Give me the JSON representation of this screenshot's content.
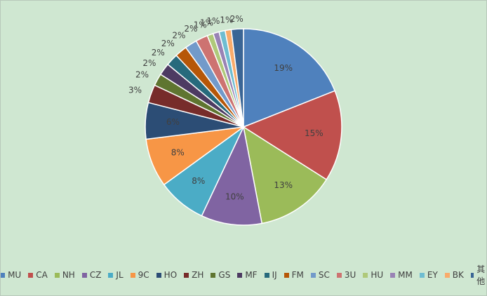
{
  "chart_data": {
    "type": "pie",
    "categories": [
      "MU",
      "CA",
      "NH",
      "CZ",
      "JL",
      "9C",
      "HO",
      "ZH",
      "GS",
      "MF",
      "IJ",
      "FM",
      "SC",
      "3U",
      "HU",
      "MM",
      "EY",
      "BK",
      "其他"
    ],
    "values": [
      19,
      15,
      13,
      10,
      8,
      8,
      6,
      3,
      2,
      2,
      2,
      2,
      2,
      2,
      1,
      1,
      1,
      1,
      2
    ],
    "value_labels": [
      "19%",
      "15%",
      "13%",
      "10%",
      "8%",
      "8%",
      "6%",
      "3%",
      "2%",
      "2%",
      "2%",
      "2%",
      "2%",
      "2%",
      "1%",
      "1%",
      "1%",
      "1%",
      "2%"
    ],
    "colors": [
      "#4f81bd",
      "#c0504d",
      "#9bbb59",
      "#8064a2",
      "#4bacc6",
      "#f79646",
      "#2c4d75",
      "#772c2a",
      "#5f7530",
      "#4d3b62",
      "#276a7c",
      "#b65708",
      "#729aca",
      "#cd7371",
      "#afc97a",
      "#9983b5",
      "#6fbdd1",
      "#f9ab6b",
      "#3a6595"
    ],
    "legend": "bottom"
  }
}
